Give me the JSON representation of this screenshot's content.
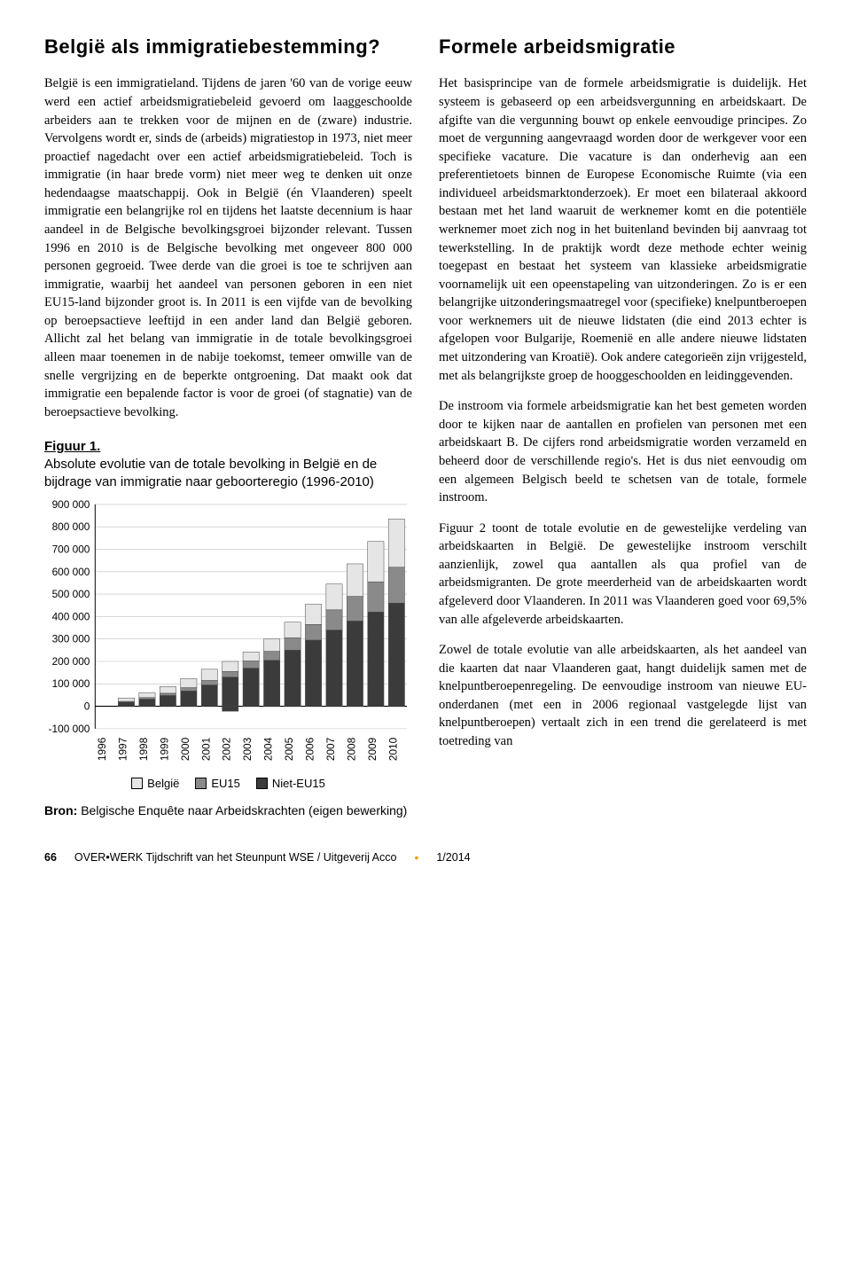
{
  "left": {
    "title": "België als immigratiebestemming?",
    "para": "België is een immigratieland. Tijdens de jaren '60 van de vorige eeuw werd een actief arbeidsmigratiebeleid gevoerd om laaggeschoolde arbeiders aan te trekken voor de mijnen en de (zware) industrie. Vervolgens wordt er, sinds de (arbeids) migratiestop in 1973, niet meer proactief nagedacht over een actief arbeidsmigratiebeleid. Toch is immigratie (in haar brede vorm) niet meer weg te denken uit onze hedendaagse maatschappij. Ook in België (én Vlaanderen) speelt immigratie een belangrijke rol en tijdens het laatste decennium is haar aandeel in de Belgische bevolkingsgroei bijzonder relevant. Tussen 1996 en 2010 is de Belgische bevolking met ongeveer 800 000 personen gegroeid. Twee derde van die groei is toe te schrijven aan immigratie, waarbij het aandeel van personen geboren in een niet EU15-land bijzonder groot is. In 2011 is een vijfde van de bevolking op beroepsactieve leeftijd in een ander land dan België geboren. Allicht zal het belang van immigratie in de totale bevolkingsgroei alleen maar toenemen in de nabije toekomst, temeer omwille van de snelle vergrijzing en de beperkte ontgroening. Dat maakt ook dat immigratie een bepalende factor is voor de groei (of stagnatie) van de beroepsactieve bevolking."
  },
  "right": {
    "title": "Formele arbeidsmigratie",
    "para1": "Het basisprincipe van de formele arbeidsmigratie is duidelijk. Het systeem is gebaseerd op een arbeidsvergunning en arbeidskaart. De afgifte van die vergunning bouwt op enkele eenvoudige principes. Zo moet de vergunning aangevraagd worden door de werkgever voor een specifieke vacature. Die vacature is dan onderhevig aan een preferentietoets binnen de Europese Economische Ruimte (via een individueel arbeidsmarktonderzoek). Er moet een bilateraal akkoord bestaan met het land waaruit de werknemer komt en die potentiële werknemer moet zich nog in het buitenland bevinden bij aanvraag tot tewerkstelling. In de praktijk wordt deze methode echter weinig toegepast en bestaat het systeem van klassieke arbeidsmigratie voornamelijk uit een opeenstapeling van uitzonderingen. Zo is er een belangrijke uitzonderingsmaatregel voor (specifieke) knelpuntberoepen voor werknemers uit de nieuwe lidstaten (die eind 2013 echter is afgelopen voor Bulgarije, Roemenië en alle andere nieuwe lidstaten met uitzondering van Kroatië). Ook andere categorieën zijn vrijgesteld, met als belangrijkste groep de hooggeschoolden en leidinggevenden.",
    "para2": "De instroom via formele arbeidsmigratie kan het best gemeten worden door te kijken naar de aantallen en profielen van personen met een arbeidskaart B. De cijfers rond arbeidsmigratie worden verzameld en beheerd door de verschillende regio's. Het is dus niet eenvoudig om een algemeen Belgisch beeld te schetsen van de totale, formele instroom.",
    "para3": "Figuur 2 toont de totale evolutie en de gewestelijke verdeling van arbeidskaarten in België. De gewestelijke instroom verschilt aanzienlijk, zowel qua aantallen als qua profiel van de arbeidsmigranten. De grote meerderheid van de arbeidskaarten wordt afgeleverd door Vlaanderen. In 2011 was Vlaanderen goed voor 69,5% van alle afgeleverde arbeidskaarten.",
    "para4": "Zowel de totale evolutie van alle arbeidskaarten, als het aandeel van die kaarten dat naar Vlaanderen gaat, hangt duidelijk samen met de knelpuntberoepenregeling. De eenvoudige instroom van nieuwe EU-onderdanen (met een in 2006 regionaal vastgelegde lijst van knelpuntberoepen) vertaalt zich in een trend die gerelateerd is met toetreding van"
  },
  "figure": {
    "label": "Figuur 1.",
    "caption": "Absolute evolutie van de totale bevolking in België en de bijdrage van immigratie naar geboorteregio (1996-2010)",
    "source_label": "Bron:",
    "source_text": "Belgische Enquête naar Arbeidskrachten (eigen bewerking)"
  },
  "chart": {
    "type": "stacked-bar",
    "ylim": [
      -100000,
      900000
    ],
    "ytick_step": 100000,
    "ytick_labels": [
      "-100 000",
      "0",
      "100 000",
      "200 000",
      "300 000",
      "400 000",
      "500 000",
      "600 000",
      "700 000",
      "800 000",
      "900 000"
    ],
    "years": [
      "1996",
      "1997",
      "1998",
      "1999",
      "2000",
      "2001",
      "2002",
      "2003",
      "2004",
      "2005",
      "2006",
      "2007",
      "2008",
      "2009",
      "2010"
    ],
    "series": [
      {
        "name": "België",
        "label": "België",
        "color": "#e5e5e5"
      },
      {
        "name": "EU15",
        "label": "EU15",
        "color": "#8a8a8a"
      },
      {
        "name": "Niet-EU15",
        "label": "Niet-EU15",
        "color": "#3b3b3b"
      }
    ],
    "data": {
      "België": [
        0,
        15000,
        22000,
        30000,
        40000,
        50000,
        45000,
        40000,
        55000,
        70000,
        90000,
        115000,
        145000,
        180000,
        215000
      ],
      "EU15": [
        0,
        4000,
        7000,
        10000,
        15000,
        20000,
        25000,
        32000,
        40000,
        55000,
        70000,
        90000,
        110000,
        135000,
        160000
      ],
      "Niet-EU15": [
        0,
        18000,
        32000,
        48000,
        68000,
        95000,
        130000,
        170000,
        205000,
        250000,
        295000,
        340000,
        380000,
        420000,
        460000
      ],
      "Niet-EU15_neg": [
        0,
        0,
        0,
        0,
        0,
        0,
        -22000,
        0,
        0,
        0,
        0,
        0,
        0,
        0,
        0
      ]
    },
    "background_color": "#ffffff",
    "grid_color": "#bfbfbf",
    "axis_color": "#000000",
    "bar_border": "#444444",
    "bar_group_width": 0.78,
    "tick_fontsize": 11,
    "font_family": "Trebuchet MS"
  },
  "footer": {
    "page": "66",
    "journal": "OVER•WERK Tijdschrift van het Steunpunt WSE / Uitgeverij Acco",
    "issue": "1/2014"
  }
}
